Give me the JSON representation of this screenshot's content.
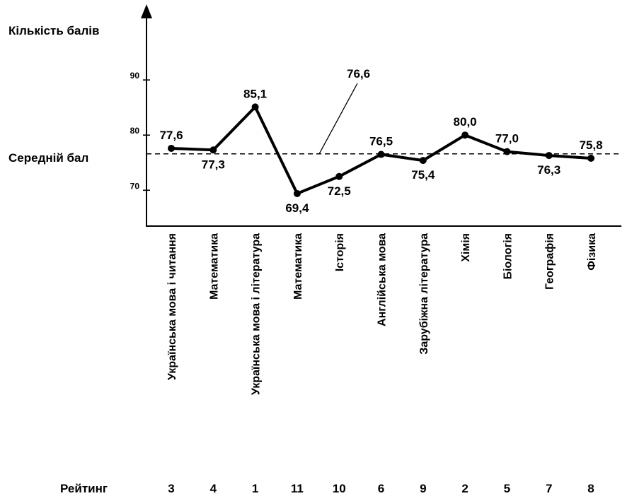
{
  "chart_data": {
    "type": "line",
    "ylabel": "Кількість балів",
    "yticks": [
      70,
      80,
      90
    ],
    "ylim": [
      63.5,
      104.5
    ],
    "average": {
      "label": "Середній бал",
      "value": 76.6,
      "annotation": "76,6"
    },
    "categories": [
      "Українська мова і читання",
      "Математика",
      "Українська мова і література",
      "Математика",
      "Історія",
      "Англійська мова",
      "Зарубіжна література",
      "Хімія",
      "Біологія",
      "Географія",
      "Фізика"
    ],
    "series": [
      {
        "values": [
          77.6,
          77.3,
          85.1,
          69.4,
          72.5,
          76.5,
          75.4,
          80.0,
          77.0,
          76.3,
          75.8
        ],
        "labels": [
          "77,6",
          "77,3",
          "85,1",
          "69,4",
          "72,5",
          "76,5",
          "75,4",
          "80,0",
          "77,0",
          "76,3",
          "75,8"
        ]
      }
    ],
    "rating": {
      "label": "Рейтинг",
      "values": [
        "3",
        "4",
        "1",
        "11",
        "10",
        "6",
        "9",
        "2",
        "5",
        "7",
        "8"
      ]
    },
    "grid": false,
    "legend": "none"
  }
}
